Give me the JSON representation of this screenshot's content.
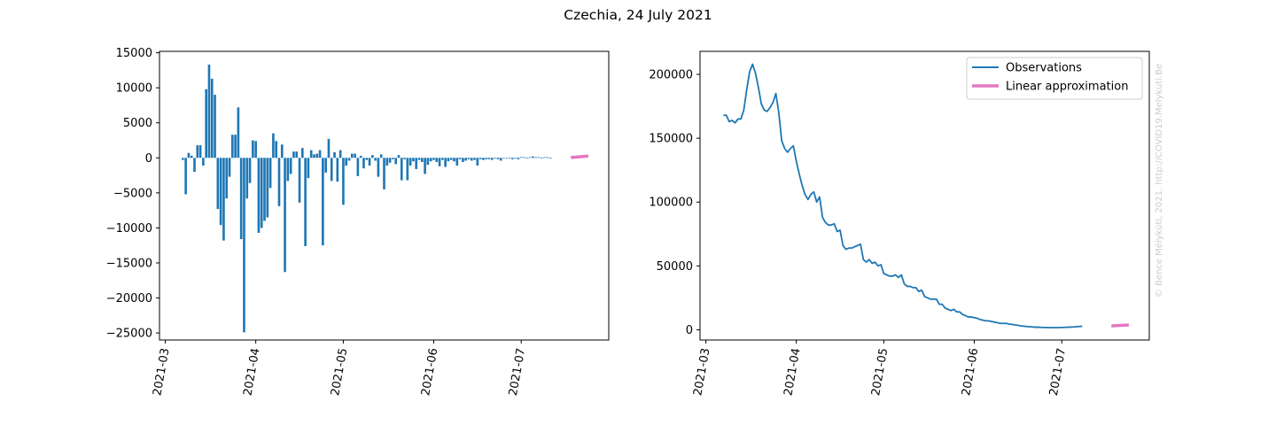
{
  "figure_title": "Czechia, 24 July 2021",
  "watermark": "© Bence Mélykúti, 2021. http://COVID19.Melykuti.Be",
  "colors": {
    "bars": "#1f77b4",
    "observations": "#1f77b4",
    "approximation": "#e377c2"
  },
  "chart_data": [
    {
      "type": "bar",
      "title": "",
      "xlabel": "",
      "ylabel": "",
      "x_ticks": [
        "2021-03",
        "2021-04",
        "2021-05",
        "2021-06",
        "2021-07"
      ],
      "y_ticks": [
        "15000",
        "10000",
        "5000",
        "0",
        "−5000",
        "−10000",
        "−15000",
        "−20000",
        "−25000"
      ],
      "ylim": [
        -26000,
        15200
      ],
      "xlim": [
        "2021-02-27",
        "2021-07-31"
      ],
      "bars": {
        "start_date": "2021-03-07",
        "values": [
          -300,
          -5200,
          700,
          300,
          -2000,
          1800,
          1800,
          -1100,
          9800,
          13300,
          11300,
          9000,
          -7300,
          -9600,
          -11800,
          -5800,
          -2700,
          3300,
          3300,
          7200,
          -11600,
          -24900,
          -5800,
          -3600,
          2500,
          2400,
          -10700,
          -10000,
          -9000,
          -8500,
          -4300,
          3500,
          2400,
          -6900,
          1900,
          -16300,
          -3300,
          -2300,
          900,
          900,
          -6400,
          1400,
          -12600,
          -2900,
          1100,
          500,
          600,
          1100,
          -12500,
          -2100,
          2700,
          -3300,
          800,
          -3400,
          1100,
          -6700,
          -1100,
          -400,
          600,
          600,
          -2600,
          300,
          -1500,
          -300,
          -1100,
          400,
          -400,
          -2700,
          500,
          -4500,
          -1100,
          -700,
          -200,
          -900,
          400,
          -3200,
          -200,
          -3200,
          -1100,
          -500,
          -1600,
          -300,
          -600,
          -2300,
          -1000,
          -500,
          -300,
          -600,
          -1200,
          -300,
          -1300,
          -500,
          -300,
          -500,
          -1100,
          -200,
          -600,
          -400,
          -200,
          -400,
          -300,
          -1100,
          -200,
          -300,
          -200,
          -200,
          -300,
          -100,
          -200,
          -400,
          0,
          0,
          -100,
          -200,
          -100,
          -200,
          100,
          100,
          -100,
          100,
          200,
          100,
          100,
          -100,
          100,
          100,
          -100
        ],
        "last_observation_date": "2021-07-18"
      },
      "approximation": {
        "from": [
          "2021-07-18",
          50
        ],
        "to": [
          "2021-07-24",
          250
        ]
      }
    },
    {
      "type": "line",
      "title": "",
      "xlabel": "",
      "ylabel": "",
      "x_ticks": [
        "2021-03",
        "2021-04",
        "2021-05",
        "2021-06",
        "2021-07"
      ],
      "y_ticks": [
        "200000",
        "150000",
        "100000",
        "50000",
        "0"
      ],
      "ylim": [
        -8000,
        218000
      ],
      "xlim": [
        "2021-02-27",
        "2021-07-31"
      ],
      "legend": {
        "placement": "top-right",
        "entries": [
          "Observations",
          "Linear approximation"
        ]
      },
      "series": [
        {
          "name": "Observations",
          "start_date": "2021-03-07",
          "values": [
            168000,
            168000,
            163000,
            164000,
            162000,
            165000,
            165000,
            172000,
            188000,
            202000,
            208000,
            201000,
            190000,
            177000,
            172000,
            171000,
            174000,
            178000,
            185000,
            170000,
            148000,
            142000,
            139000,
            142000,
            144000,
            132000,
            122000,
            113000,
            106000,
            102000,
            106000,
            108000,
            100000,
            104000,
            88000,
            84000,
            82000,
            82000,
            83000,
            77000,
            78000,
            66000,
            63000,
            64000,
            64000,
            65000,
            66000,
            67000,
            55000,
            53000,
            55000,
            52000,
            53000,
            50000,
            51000,
            44000,
            43000,
            42000,
            42000,
            43000,
            41000,
            43000,
            36000,
            34000,
            34000,
            33000,
            33000,
            30000,
            31000,
            26000,
            25000,
            24000,
            24000,
            24000,
            20000,
            20000,
            17000,
            16000,
            15000,
            16000,
            14000,
            14000,
            12000,
            11000,
            10000,
            10000,
            9500,
            9000,
            8000,
            7500,
            7000,
            7000,
            6500,
            6000,
            5500,
            5000,
            5000,
            5000,
            4500,
            4200,
            3800,
            3500,
            3000,
            2800,
            2600,
            2400,
            2200,
            2000,
            2000,
            1900,
            1800,
            1800,
            1700,
            1700,
            1700,
            1700,
            1800,
            1900,
            2000,
            2100,
            2200,
            2400,
            2600,
            2800
          ],
          "end_date_note": "2021-07-18"
        },
        {
          "name": "Linear approximation",
          "points": [
            [
              "2021-07-18",
              3000
            ],
            [
              "2021-07-24",
              3800
            ]
          ]
        }
      ]
    }
  ]
}
